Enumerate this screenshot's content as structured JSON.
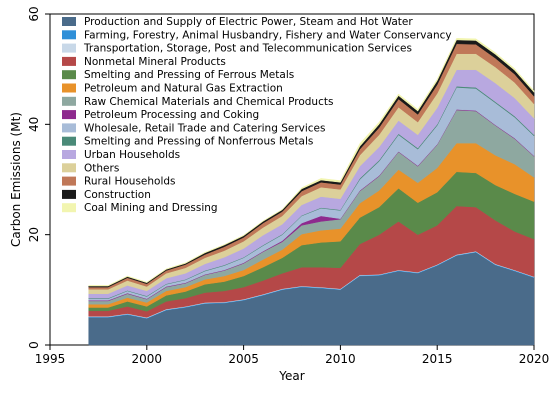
{
  "chart_data": {
    "type": "area",
    "stacked": true,
    "title": "",
    "xlabel": "Year",
    "ylabel": "Carbon Emissions (Mt)",
    "xlim": [
      1995,
      2020
    ],
    "ylim": [
      0,
      60
    ],
    "xticks": [
      1995,
      2000,
      2005,
      2010,
      2015,
      2020
    ],
    "yticks": [
      0,
      20,
      40,
      60
    ],
    "legend_position": "inside-top-left",
    "x": [
      1997,
      1998,
      1999,
      2000,
      2001,
      2002,
      2003,
      2004,
      2005,
      2006,
      2007,
      2008,
      2009,
      2010,
      2011,
      2012,
      2013,
      2014,
      2015,
      2016,
      2017,
      2018,
      2019,
      2020
    ],
    "series": [
      {
        "name": "Production and Supply of Electric Power, Steam and Hot Water",
        "color": "#4a6b8a",
        "values": [
          5.0,
          5.0,
          5.5,
          4.8,
          6.3,
          6.8,
          7.5,
          7.6,
          8.1,
          9.0,
          10.0,
          10.5,
          10.3,
          10.0,
          12.5,
          12.6,
          13.4,
          13.0,
          14.4,
          16.2,
          16.8,
          14.5,
          13.4,
          12.2
        ]
      },
      {
        "name": "Farming, Forestry, Animal Husbandry, Fishery and Water Conservancy",
        "color": "#2f8fd8",
        "values": [
          0.1,
          0.1,
          0.1,
          0.1,
          0.1,
          0.1,
          0.1,
          0.1,
          0.1,
          0.1,
          0.1,
          0.1,
          0.1,
          0.1,
          0.1,
          0.1,
          0.1,
          0.1,
          0.1,
          0.1,
          0.1,
          0.1,
          0.1,
          0.1
        ]
      },
      {
        "name": "Transportation, Storage, Post and Telecommunication Services",
        "color": "#c8d8e8",
        "values": [
          0.1,
          0.1,
          0.1,
          0.1,
          0.1,
          0.1,
          0.1,
          0.1,
          0.1,
          0.1,
          0.1,
          0.1,
          0.1,
          0.1,
          0.1,
          0.1,
          0.1,
          0.1,
          0.1,
          0.1,
          0.1,
          0.1,
          0.1,
          0.1
        ]
      },
      {
        "name": "Nonmetal Mineral Products",
        "color": "#b54848",
        "values": [
          1.0,
          1.0,
          1.3,
          1.1,
          1.4,
          1.5,
          1.8,
          2.0,
          2.2,
          2.5,
          2.8,
          3.4,
          3.6,
          3.8,
          5.6,
          7.2,
          8.8,
          6.8,
          7.1,
          8.8,
          8.0,
          7.9,
          7.0,
          6.8
        ]
      },
      {
        "name": "Smelting and Pressing of Ferrous Metals",
        "color": "#5a8a4a",
        "values": [
          0.6,
          0.6,
          0.9,
          0.9,
          1.1,
          1.2,
          1.5,
          1.7,
          2.0,
          2.4,
          2.8,
          4.0,
          4.5,
          4.8,
          4.8,
          5.0,
          6.0,
          5.8,
          6.0,
          6.2,
          6.2,
          6.4,
          6.8,
          6.8
        ]
      },
      {
        "name": "Petroleum and Natural Gas Extraction",
        "color": "#e8922a",
        "values": [
          0.6,
          0.6,
          0.7,
          0.7,
          0.8,
          0.8,
          0.9,
          1.0,
          1.1,
          1.4,
          1.5,
          2.0,
          2.2,
          2.3,
          2.6,
          3.0,
          3.4,
          3.6,
          4.4,
          5.2,
          5.4,
          5.4,
          5.4,
          4.4
        ]
      },
      {
        "name": "Raw Chemical Materials and Chemical Products",
        "color": "#8ea8a0",
        "values": [
          0.6,
          0.6,
          0.7,
          0.6,
          0.7,
          0.7,
          0.8,
          1.0,
          1.2,
          1.4,
          1.4,
          1.6,
          1.6,
          1.7,
          2.2,
          2.6,
          3.2,
          3.0,
          4.2,
          6.0,
          5.8,
          5.4,
          4.6,
          3.8
        ]
      },
      {
        "name": "Petroleum Processing and Coking",
        "color": "#8e2a8e",
        "values": [
          0.1,
          0.1,
          0.1,
          0.1,
          0.1,
          0.1,
          0.1,
          0.1,
          0.1,
          0.1,
          0.2,
          0.4,
          1.0,
          0.1,
          0.1,
          0.1,
          0.1,
          0.1,
          0.1,
          0.1,
          0.1,
          0.1,
          0.1,
          0.1
        ]
      },
      {
        "name": "Wholesale, Retail Trade and Catering Services",
        "color": "#a8bcd8",
        "values": [
          0.3,
          0.3,
          0.4,
          0.4,
          0.4,
          0.5,
          0.6,
          0.8,
          0.9,
          1.0,
          1.1,
          1.3,
          1.4,
          1.5,
          2.0,
          2.6,
          3.0,
          3.0,
          3.4,
          4.0,
          4.0,
          4.0,
          3.8,
          3.6
        ]
      },
      {
        "name": "Smelting and Pressing of Nonferrous Metals",
        "color": "#4a8a78",
        "values": [
          0.1,
          0.1,
          0.1,
          0.1,
          0.1,
          0.1,
          0.1,
          0.1,
          0.1,
          0.1,
          0.1,
          0.1,
          0.1,
          0.1,
          0.2,
          0.2,
          0.2,
          0.2,
          0.2,
          0.2,
          0.2,
          0.2,
          0.2,
          0.2
        ]
      },
      {
        "name": "Urban Households",
        "color": "#b8a8e0",
        "values": [
          0.8,
          0.8,
          0.9,
          0.9,
          1.0,
          1.1,
          1.2,
          1.4,
          1.6,
          1.8,
          1.8,
          1.9,
          2.0,
          2.0,
          2.2,
          2.4,
          2.4,
          2.4,
          3.0,
          3.0,
          3.2,
          3.4,
          3.3,
          3.0
        ]
      },
      {
        "name": "Others",
        "color": "#dcd09a",
        "values": [
          0.8,
          0.8,
          0.9,
          0.8,
          0.9,
          1.0,
          1.1,
          1.2,
          1.3,
          1.4,
          1.5,
          1.6,
          1.7,
          1.7,
          2.0,
          2.2,
          2.4,
          2.3,
          2.6,
          2.9,
          2.9,
          2.9,
          2.8,
          2.6
        ]
      },
      {
        "name": "Rural Households",
        "color": "#c07858",
        "values": [
          0.4,
          0.4,
          0.5,
          0.5,
          0.5,
          0.6,
          0.6,
          0.7,
          0.7,
          0.8,
          0.8,
          0.9,
          0.9,
          0.9,
          1.1,
          1.3,
          1.5,
          1.4,
          1.6,
          1.8,
          1.7,
          1.6,
          1.5,
          1.4
        ]
      },
      {
        "name": "Construction",
        "color": "#1a1a1a",
        "values": [
          0.2,
          0.2,
          0.2,
          0.2,
          0.2,
          0.2,
          0.3,
          0.3,
          0.3,
          0.3,
          0.3,
          0.4,
          0.4,
          0.4,
          0.5,
          0.6,
          0.6,
          0.6,
          0.7,
          0.7,
          0.7,
          0.7,
          0.7,
          0.7
        ]
      },
      {
        "name": "Coal Mining and Dressing",
        "color": "#f2f5b0",
        "values": [
          0.1,
          0.1,
          0.1,
          0.1,
          0.1,
          0.1,
          0.1,
          0.1,
          0.1,
          0.1,
          0.1,
          0.2,
          0.3,
          0.3,
          0.5,
          0.4,
          0.3,
          0.3,
          0.3,
          0.3,
          0.3,
          0.3,
          0.3,
          0.3
        ]
      }
    ]
  }
}
